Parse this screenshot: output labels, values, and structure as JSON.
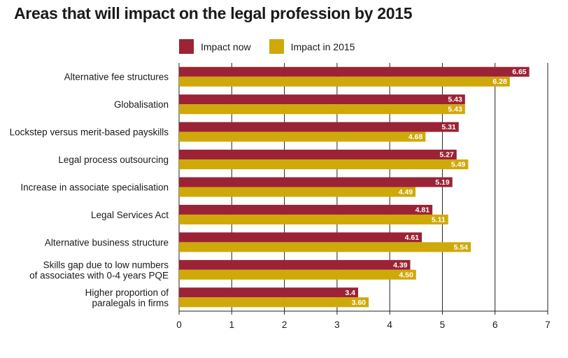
{
  "chart_data": {
    "type": "bar",
    "orientation": "horizontal",
    "title": "Areas that will impact on the legal  profession by 2015",
    "categories": [
      [
        "Alternative fee structures"
      ],
      [
        "Globalisation"
      ],
      [
        "Lockstep versus merit-based payskills"
      ],
      [
        "Legal process outsourcing"
      ],
      [
        "Increase in associate specialisation"
      ],
      [
        "Legal Services Act"
      ],
      [
        "Alternative business structure"
      ],
      [
        "Skills gap due to low numbers",
        "of associates with 0-4 years PQE"
      ],
      [
        "Higher proportion of",
        "paralegals in firms"
      ]
    ],
    "series": [
      {
        "name": "Impact now",
        "color": "#9b2335",
        "values": [
          6.65,
          5.43,
          5.31,
          5.27,
          5.19,
          4.81,
          4.61,
          4.39,
          3.4
        ],
        "labels": [
          "6.65",
          "5.43",
          "5.31",
          "5.27",
          "5.19",
          "4.81",
          "4.61",
          "4.39",
          "3.4"
        ]
      },
      {
        "name": "Impact in 2015",
        "color": "#cfa90a",
        "values": [
          6.28,
          5.43,
          4.68,
          5.49,
          4.49,
          5.11,
          5.54,
          4.5,
          3.6
        ],
        "labels": [
          "6.28",
          "5.43",
          "4.68",
          "5.49",
          "4.49",
          "5.11",
          "5.54",
          "4.50",
          "3.60"
        ]
      }
    ],
    "xlim": [
      0,
      7
    ],
    "xticks": [
      "0",
      "1",
      "2",
      "3",
      "4",
      "5",
      "6",
      "7"
    ],
    "grid": true,
    "legend_position": "top"
  }
}
